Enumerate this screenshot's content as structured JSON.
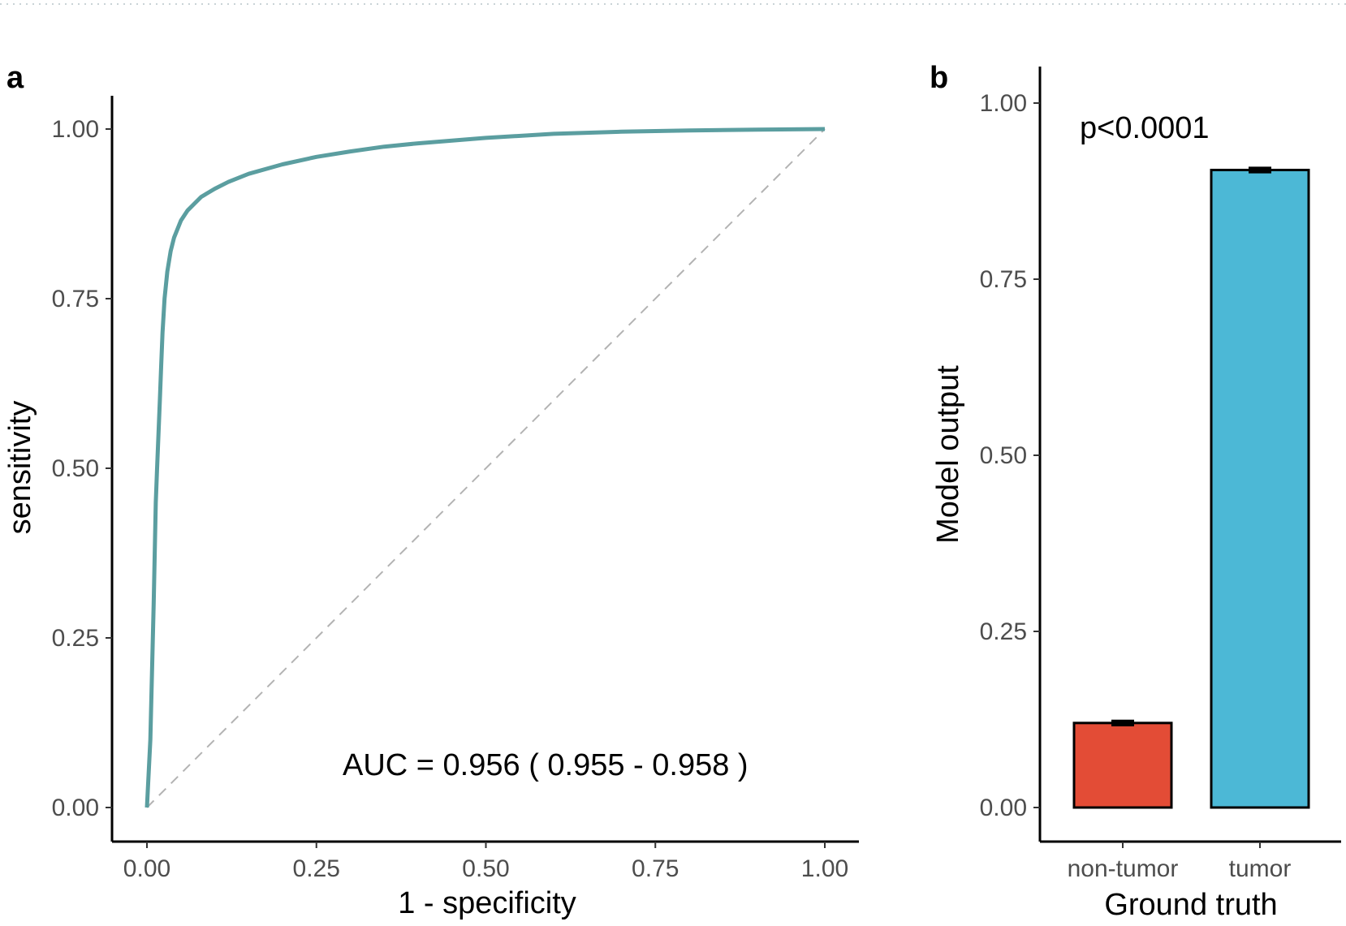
{
  "panels": {
    "a_label": "a",
    "b_label": "b"
  },
  "chart_data": [
    {
      "type": "line",
      "panel": "a",
      "xlabel": "1 - specificity",
      "ylabel": "sensitivity",
      "xlim": [
        0,
        1
      ],
      "ylim": [
        0,
        1
      ],
      "x_ticks": [
        "0.00",
        "0.25",
        "0.50",
        "0.75",
        "1.00"
      ],
      "y_ticks": [
        "0.00",
        "0.25",
        "0.50",
        "0.75",
        "1.00"
      ],
      "grid": false,
      "annotation": "AUC = 0.956 ( 0.955 - 0.958 )",
      "series": [
        {
          "color": "#5b9ea0",
          "x": [
            0,
            0.005,
            0.01,
            0.013,
            0.015,
            0.017,
            0.019,
            0.021,
            0.023,
            0.026,
            0.03,
            0.035,
            0.04,
            0.05,
            0.06,
            0.08,
            0.1,
            0.12,
            0.15,
            0.2,
            0.25,
            0.3,
            0.35,
            0.4,
            0.5,
            0.6,
            0.7,
            0.8,
            0.9,
            1.0
          ],
          "y": [
            0,
            0.1,
            0.3,
            0.45,
            0.5,
            0.55,
            0.6,
            0.65,
            0.7,
            0.75,
            0.79,
            0.82,
            0.84,
            0.865,
            0.88,
            0.9,
            0.912,
            0.922,
            0.934,
            0.948,
            0.959,
            0.967,
            0.974,
            0.979,
            0.987,
            0.993,
            0.996,
            0.998,
            0.999,
            1.0
          ]
        }
      ],
      "reference_line": {
        "x": [
          0,
          1
        ],
        "y": [
          0,
          1
        ],
        "style": "dashed",
        "color": "#b3b3b3"
      }
    },
    {
      "type": "bar",
      "panel": "b",
      "xlabel": "Ground truth",
      "ylabel": "Model output",
      "categories": [
        "non-tumor",
        "tumor"
      ],
      "values": [
        0.12,
        0.905
      ],
      "errors": [
        0.003,
        0.003
      ],
      "colors": [
        "#e34c36",
        "#4cb8d6"
      ],
      "ylim": [
        0,
        1.05
      ],
      "y_ticks": [
        "0.00",
        "0.25",
        "0.50",
        "0.75",
        "1.00"
      ],
      "grid": false,
      "annotation": "p<0.0001"
    }
  ]
}
